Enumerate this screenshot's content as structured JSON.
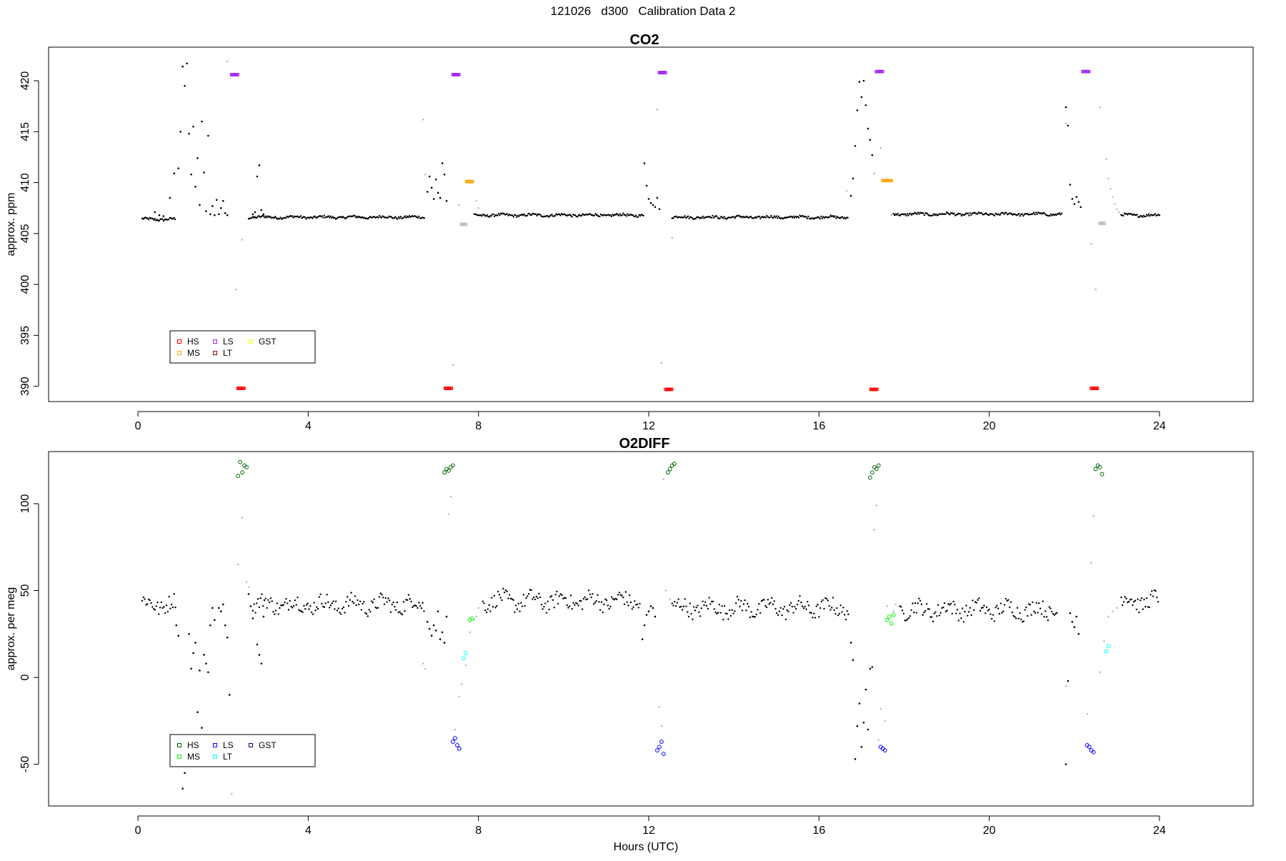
{
  "figure": {
    "title": "121026   d300   Calibration Data 2",
    "xlabel": "Hours (UTC)"
  },
  "colors": {
    "data": "#000000",
    "excluded": "#bdbdbd",
    "HS_co2": "#ff0000",
    "MS_co2": "#ffa500",
    "LS_co2": "#a020f0",
    "LT_co2": "#8b0000",
    "GST_co2": "#ffff00",
    "HS_o2": "#006400",
    "MS_o2": "#00ff00",
    "LS_o2": "#0000ff",
    "LT_o2": "#00ffff",
    "GST_o2": "#00008b"
  },
  "chart_data": [
    {
      "type": "scatter",
      "title": "CO2",
      "xlabel": "",
      "ylabel": "approx. ppm",
      "xlim": [
        -2.1,
        26.2
      ],
      "ylim": [
        388.5,
        423.3
      ],
      "xticks": [
        "0",
        "4",
        "8",
        "12",
        "16",
        "20",
        "24"
      ],
      "xtick_values": [
        0,
        4,
        8,
        12,
        16,
        20,
        24
      ],
      "yticks": [
        "390",
        "395",
        "400",
        "405",
        "410",
        "415",
        "420"
      ],
      "ytick_values": [
        390,
        395,
        400,
        405,
        410,
        415,
        420
      ],
      "grid": false,
      "legend": {
        "position": "bottom-left",
        "entries": [
          {
            "name": "HS",
            "color": "#ff0000"
          },
          {
            "name": "MS",
            "color": "#ffa500"
          },
          {
            "name": "LS",
            "color": "#a020f0"
          },
          {
            "name": "LT",
            "color": "#8b0000"
          },
          {
            "name": "GST",
            "color": "#ffff00"
          }
        ]
      },
      "baseline": {
        "segments": [
          [
            0.1,
            0.9,
            406.4
          ],
          [
            2.6,
            6.75,
            406.6
          ],
          [
            7.9,
            11.9,
            406.8
          ],
          [
            12.55,
            16.7,
            406.6
          ],
          [
            17.75,
            21.7,
            406.9
          ],
          [
            23.1,
            24.0,
            406.8
          ]
        ],
        "noise": 0.12,
        "step": 0.025
      },
      "spikes": [
        {
          "x": [
            0.4,
            0.5,
            0.6,
            0.75,
            0.85,
            0.95,
            1.0,
            1.05,
            1.1,
            1.15,
            1.2,
            1.25,
            1.3,
            1.35,
            1.4,
            1.45,
            1.5,
            1.55,
            1.6,
            1.65,
            1.7,
            1.75,
            1.8,
            1.85,
            1.9,
            1.95,
            2.0,
            2.05,
            2.1,
            2.7,
            2.75,
            2.8,
            2.85,
            2.9,
            2.95
          ],
          "y": [
            407.1,
            406.8,
            406.7,
            408.5,
            410.9,
            411.4,
            415.0,
            421.4,
            419.5,
            421.7,
            414.8,
            410.8,
            415.5,
            409.6,
            412.4,
            407.8,
            416.0,
            411.0,
            407.2,
            414.6,
            406.9,
            407.7,
            406.8,
            408.3,
            406.9,
            407.5,
            408.2,
            407.0,
            406.8,
            406.9,
            407.1,
            410.6,
            411.7,
            407.3,
            406.9
          ]
        },
        {
          "x": [
            6.8,
            6.85,
            6.9,
            6.95,
            7.0,
            7.05,
            7.1,
            7.15,
            7.2,
            7.25
          ],
          "y": [
            409.1,
            410.6,
            409.5,
            408.4,
            410.3,
            409.0,
            408.5,
            411.9,
            410.8,
            408.2
          ]
        },
        {
          "x": [
            11.9,
            11.95,
            12.0,
            12.05,
            12.1,
            12.15,
            12.2,
            12.25
          ],
          "y": [
            411.9,
            409.7,
            408.4,
            408.0,
            407.8,
            407.6,
            408.5,
            407.4
          ]
        },
        {
          "x": [
            16.75,
            16.8,
            16.85,
            16.9,
            16.95,
            17.0,
            17.05,
            17.1,
            17.15,
            17.2,
            17.25
          ],
          "y": [
            408.7,
            410.4,
            413.6,
            417.1,
            419.9,
            418.4,
            420.0,
            417.6,
            415.3,
            414.2,
            412.7
          ]
        },
        {
          "x": [
            21.8,
            21.85,
            21.9,
            21.95,
            22.0,
            22.05,
            22.1,
            22.15
          ],
          "y": [
            417.4,
            415.6,
            409.8,
            408.4,
            407.9,
            408.6,
            408.1,
            407.6
          ]
        }
      ],
      "excluded": {
        "x": [
          2.1,
          2.3,
          2.45,
          6.7,
          6.75,
          7.4,
          7.55,
          7.95,
          8.0,
          12.2,
          12.3,
          12.55,
          16.65,
          17.3,
          17.45,
          17.7,
          17.8,
          21.8,
          22.4,
          22.5,
          22.6,
          22.75,
          22.8,
          22.85,
          22.9,
          22.95,
          23.0,
          23.05
        ],
        "y": [
          421.9,
          399.5,
          404.4,
          416.2,
          410.8,
          392.1,
          407.8,
          408.2,
          407.5,
          417.2,
          392.3,
          404.6,
          409.2,
          410.9,
          413.4,
          406.8,
          407.0,
          415.8,
          404.0,
          399.5,
          417.4,
          412.3,
          410.4,
          409.4,
          408.6,
          407.9,
          407.4,
          407.1
        ]
      },
      "calibration": [
        {
          "name": "LS",
          "color": "#a020f0",
          "x_start": 2.2,
          "x_end": 2.35,
          "y": 420.6
        },
        {
          "name": "HS",
          "color": "#ff0000",
          "x_start": 2.35,
          "x_end": 2.5,
          "y": 389.8
        },
        {
          "name": "HS",
          "color": "#ff0000",
          "x_start": 7.22,
          "x_end": 7.37,
          "y": 389.8
        },
        {
          "name": "LS",
          "color": "#a020f0",
          "x_start": 7.4,
          "x_end": 7.55,
          "y": 420.6
        },
        {
          "name": "MS",
          "color": "#ffa500",
          "x_start": 7.72,
          "x_end": 7.87,
          "y": 410.1
        },
        {
          "name": "LS",
          "color": "#a020f0",
          "x_start": 12.25,
          "x_end": 12.4,
          "y": 420.8
        },
        {
          "name": "HS",
          "color": "#ff0000",
          "x_start": 12.4,
          "x_end": 12.55,
          "y": 389.7
        },
        {
          "name": "HS",
          "color": "#ff0000",
          "x_start": 17.22,
          "x_end": 17.37,
          "y": 389.7
        },
        {
          "name": "LS",
          "color": "#a020f0",
          "x_start": 17.35,
          "x_end": 17.5,
          "y": 420.9
        },
        {
          "name": "MS",
          "color": "#ffa500",
          "x_start": 17.5,
          "x_end": 17.7,
          "y": 410.2
        },
        {
          "name": "LS",
          "color": "#a020f0",
          "x_start": 22.2,
          "x_end": 22.35,
          "y": 420.9
        },
        {
          "name": "HS",
          "color": "#ff0000",
          "x_start": 22.4,
          "x_end": 22.55,
          "y": 389.8
        },
        {
          "name": "LT",
          "color": "#bdbdbd",
          "x_start": 7.6,
          "x_end": 7.7,
          "y": 405.9
        },
        {
          "name": "LT",
          "color": "#bdbdbd",
          "x_start": 22.6,
          "x_end": 22.7,
          "y": 406.0
        }
      ]
    },
    {
      "type": "scatter",
      "title": "O2DIFF",
      "xlabel": "Hours (UTC)",
      "ylabel": "approx. per meg",
      "xlim": [
        -2.1,
        26.2
      ],
      "ylim": [
        -74,
        130
      ],
      "xticks": [
        "0",
        "4",
        "8",
        "12",
        "16",
        "20",
        "24"
      ],
      "xtick_values": [
        0,
        4,
        8,
        12,
        16,
        20,
        24
      ],
      "yticks": [
        "-50",
        "0",
        "50",
        "100"
      ],
      "ytick_values": [
        -50,
        0,
        50,
        100
      ],
      "grid": false,
      "legend": {
        "position": "bottom-left",
        "entries": [
          {
            "name": "HS",
            "color": "#006400"
          },
          {
            "name": "MS",
            "color": "#00ff00"
          },
          {
            "name": "LS",
            "color": "#0000ff"
          },
          {
            "name": "LT",
            "color": "#00ffff"
          },
          {
            "name": "GST",
            "color": "#00008b"
          }
        ]
      },
      "baseline": {
        "segments": [
          [
            0.1,
            0.9,
            42
          ],
          [
            2.7,
            6.75,
            42
          ],
          [
            8.1,
            11.8,
            44
          ],
          [
            12.55,
            16.7,
            40
          ],
          [
            17.9,
            21.6,
            39
          ],
          [
            23.1,
            24.0,
            44
          ]
        ],
        "noise": 4.5,
        "step": 0.03
      },
      "spikes": [
        {
          "x": [
            0.9,
            0.95,
            1.05,
            1.1,
            1.15,
            1.2,
            1.25,
            1.3,
            1.35,
            1.4,
            1.45,
            1.5,
            1.55,
            1.6,
            1.65,
            1.7,
            1.75,
            1.8,
            1.9,
            1.95,
            2.0,
            2.05,
            2.1,
            2.15
          ],
          "y": [
            30,
            24,
            -64,
            -55,
            -40,
            25,
            5,
            14,
            20,
            -20,
            4,
            -29,
            13,
            8,
            3,
            30,
            40,
            33,
            40,
            38,
            42,
            30,
            23,
            -10
          ]
        },
        {
          "x": [
            2.6,
            2.65,
            2.7,
            2.8,
            2.85,
            2.9,
            2.95
          ],
          "y": [
            48,
            41,
            34,
            19,
            13,
            8,
            35
          ]
        },
        {
          "x": [
            6.8,
            6.85,
            6.9,
            6.95,
            7.0,
            7.05,
            7.1,
            7.15,
            7.2,
            7.25
          ],
          "y": [
            32,
            28,
            24,
            30,
            27,
            38,
            22,
            26,
            20,
            35
          ]
        },
        {
          "x": [
            11.85,
            11.9,
            11.95,
            12.0,
            12.05,
            12.1,
            12.15
          ],
          "y": [
            22,
            30,
            36,
            38,
            41,
            40,
            35
          ]
        },
        {
          "x": [
            16.75,
            16.8,
            16.85,
            16.9,
            16.95,
            17.0,
            17.05,
            17.1,
            17.15,
            17.2,
            17.25
          ],
          "y": [
            20,
            10,
            -47,
            -28,
            -15,
            -40,
            -26,
            -7,
            -30,
            5,
            6
          ]
        },
        {
          "x": [
            21.8,
            21.85,
            21.9,
            21.95,
            22.0,
            22.05,
            22.1
          ],
          "y": [
            -50,
            -2,
            37,
            32,
            29,
            35,
            25
          ]
        }
      ],
      "excluded": {
        "x": [
          2.2,
          2.35,
          2.45,
          2.55,
          2.6,
          6.7,
          6.75,
          7.3,
          7.35,
          7.45,
          7.55,
          7.6,
          7.7,
          7.8,
          7.9,
          7.95,
          8.0,
          12.25,
          12.3,
          12.35,
          12.4,
          12.5,
          17.3,
          17.35,
          17.4,
          17.45,
          17.55,
          17.6,
          17.75,
          17.8,
          21.8,
          22.3,
          22.4,
          22.45,
          22.6,
          22.7,
          22.8,
          22.9,
          23.0
        ],
        "y": [
          -67,
          65,
          92,
          55,
          52,
          8,
          5,
          94,
          104,
          -30,
          -11,
          -4,
          7,
          26,
          33,
          35,
          40,
          -17,
          -28,
          114,
          50,
          45,
          85,
          99,
          -36,
          -18,
          -25,
          41,
          38,
          42,
          -5,
          -21,
          66,
          93,
          3,
          21,
          35,
          38,
          40
        ]
      },
      "calibration_points": [
        {
          "name": "HS",
          "color": "#006400",
          "x": [
            2.35,
            2.4,
            2.45,
            2.5,
            2.55
          ],
          "y": [
            116,
            124,
            118,
            122,
            121
          ]
        },
        {
          "name": "HS",
          "color": "#006400",
          "x": [
            7.2,
            7.25,
            7.3,
            7.35,
            7.4
          ],
          "y": [
            118,
            120,
            119,
            121,
            122
          ]
        },
        {
          "name": "LS",
          "color": "#0000ff",
          "x": [
            7.4,
            7.45,
            7.5,
            7.55
          ],
          "y": [
            -37,
            -35,
            -39,
            -41
          ]
        },
        {
          "name": "MS",
          "color": "#00ff00",
          "x": [
            7.8,
            7.85
          ],
          "y": [
            33,
            34
          ]
        },
        {
          "name": "LT",
          "color": "#00ffff",
          "x": [
            7.65,
            7.7
          ],
          "y": [
            11,
            14
          ]
        },
        {
          "name": "LS",
          "color": "#0000ff",
          "x": [
            12.2,
            12.25,
            12.3,
            12.35
          ],
          "y": [
            -42,
            -40,
            -37,
            -44
          ]
        },
        {
          "name": "HS",
          "color": "#006400",
          "x": [
            12.45,
            12.5,
            12.55,
            12.6
          ],
          "y": [
            118,
            120,
            122,
            123
          ]
        },
        {
          "name": "HS",
          "color": "#006400",
          "x": [
            17.2,
            17.25,
            17.3,
            17.35,
            17.4
          ],
          "y": [
            115,
            118,
            121,
            120,
            122
          ]
        },
        {
          "name": "LS",
          "color": "#0000ff",
          "x": [
            17.45,
            17.5,
            17.55
          ],
          "y": [
            -40,
            -41,
            -42
          ]
        },
        {
          "name": "MS",
          "color": "#00ff00",
          "x": [
            17.6,
            17.65,
            17.7,
            17.75
          ],
          "y": [
            33,
            35,
            31,
            36
          ]
        },
        {
          "name": "LS",
          "color": "#0000ff",
          "x": [
            22.3,
            22.35,
            22.4,
            22.45
          ],
          "y": [
            -39,
            -40,
            -42,
            -43
          ]
        },
        {
          "name": "HS",
          "color": "#006400",
          "x": [
            22.5,
            22.55,
            22.6,
            22.65
          ],
          "y": [
            120,
            122,
            121,
            117
          ]
        },
        {
          "name": "LT",
          "color": "#00ffff",
          "x": [
            22.75,
            22.8
          ],
          "y": [
            15,
            18
          ]
        }
      ]
    }
  ]
}
